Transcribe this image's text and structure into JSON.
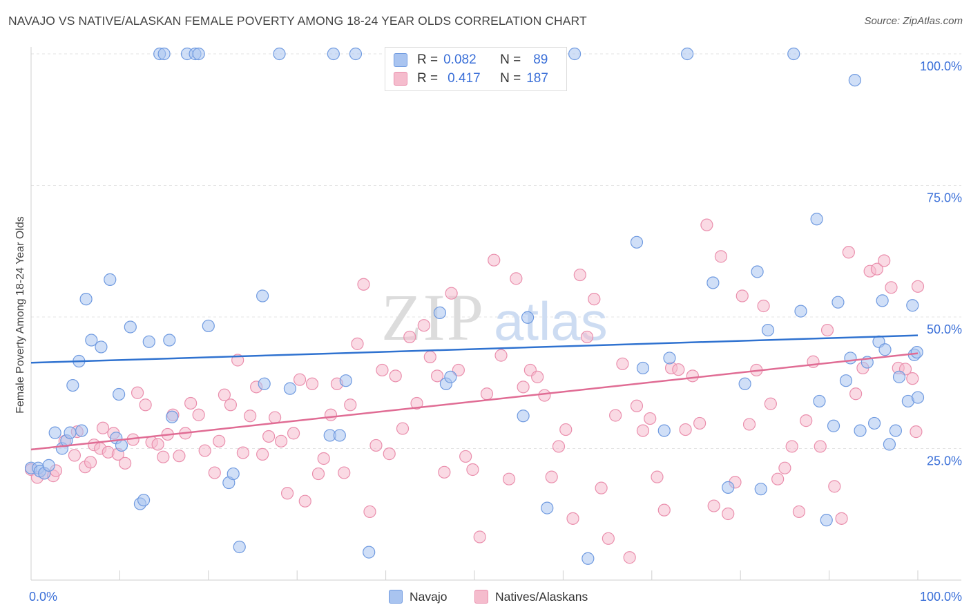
{
  "title": "NAVAJO VS NATIVE/ALASKAN FEMALE POVERTY AMONG 18-24 YEAR OLDS CORRELATION CHART",
  "source": "Source: ZipAtlas.com",
  "watermark": {
    "zip": "ZIP",
    "atlas": "atlas"
  },
  "stats": {
    "navajo": {
      "r_label": "R =",
      "r": "0.082",
      "n_label": "N =",
      "n": "89"
    },
    "natives": {
      "r_label": "R =",
      "r": "0.417",
      "n_label": "N =",
      "n": "187"
    }
  },
  "colors": {
    "navajo_fill": "#a9c4f0",
    "navajo_stroke": "#6f9ae0",
    "navajo_line": "#2f72d0",
    "natives_fill": "#f5bccd",
    "natives_stroke": "#ea8fad",
    "natives_line": "#e06c94",
    "axis_label": "#3a6fd8",
    "grid": "#e3e3e3"
  },
  "legend": {
    "navajo": "Navajo",
    "natives": "Natives/Alaskans"
  },
  "chart_data": {
    "type": "scatter",
    "title": "NAVAJO VS NATIVE/ALASKAN FEMALE POVERTY AMONG 18-24 YEAR OLDS CORRELATION CHART",
    "xlabel": "",
    "ylabel": "Female Poverty Among 18-24 Year Olds",
    "xlim": [
      0,
      100
    ],
    "ylim": [
      0,
      100
    ],
    "x_tick_labels": [
      "0.0%",
      "100.0%"
    ],
    "y_ticks": [
      {
        "value": 100,
        "label": "100.0%"
      },
      {
        "value": 75,
        "label": "75.0%"
      },
      {
        "value": 50,
        "label": "50.0%"
      },
      {
        "value": 25,
        "label": "25.0%"
      }
    ],
    "grid": true,
    "legend_position": "bottom-center",
    "series": [
      {
        "name": "Navajo",
        "trend": [
          [
            0,
            41.3
          ],
          [
            100,
            46.5
          ]
        ],
        "points": [
          [
            0,
            21.3
          ],
          [
            0.8,
            21.3
          ],
          [
            1,
            20.7
          ],
          [
            1.5,
            20.3
          ],
          [
            2,
            21.8
          ],
          [
            2.7,
            28
          ],
          [
            3.5,
            25
          ],
          [
            4,
            26.5
          ],
          [
            4.4,
            28
          ],
          [
            4.7,
            37
          ],
          [
            5.4,
            41.6
          ],
          [
            5.7,
            28.4
          ],
          [
            6.2,
            53.4
          ],
          [
            6.8,
            45.6
          ],
          [
            7.9,
            44.3
          ],
          [
            8.9,
            57.1
          ],
          [
            9.6,
            27
          ],
          [
            9.9,
            35.3
          ],
          [
            10.2,
            25.6
          ],
          [
            11.2,
            48.1
          ],
          [
            12.3,
            14.5
          ],
          [
            12.7,
            15.2
          ],
          [
            13.3,
            45.3
          ],
          [
            14.5,
            100
          ],
          [
            15,
            100
          ],
          [
            15.6,
            45.6
          ],
          [
            15.9,
            31
          ],
          [
            17.6,
            100
          ],
          [
            18.5,
            100
          ],
          [
            18.9,
            100
          ],
          [
            20,
            48.3
          ],
          [
            22.3,
            18.5
          ],
          [
            22.8,
            20.2
          ],
          [
            23.5,
            6.3
          ],
          [
            26.1,
            54
          ],
          [
            26.3,
            37.3
          ],
          [
            28,
            100
          ],
          [
            29.2,
            36.4
          ],
          [
            33.7,
            27.5
          ],
          [
            34.1,
            100
          ],
          [
            34.8,
            27.5
          ],
          [
            35.5,
            37.9
          ],
          [
            36.6,
            100
          ],
          [
            38.1,
            5.3
          ],
          [
            42.5,
            100
          ],
          [
            46.1,
            50.8
          ],
          [
            46.8,
            37.3
          ],
          [
            47.3,
            38.6
          ],
          [
            50.3,
            100
          ],
          [
            55.5,
            31.2
          ],
          [
            56,
            49.9
          ],
          [
            58.2,
            13.7
          ],
          [
            61.3,
            100
          ],
          [
            62.8,
            4.1
          ],
          [
            68.3,
            64.2
          ],
          [
            69,
            40.3
          ],
          [
            71.4,
            28.4
          ],
          [
            72,
            42.2
          ],
          [
            74,
            100
          ],
          [
            76.9,
            56.5
          ],
          [
            78.6,
            17.6
          ],
          [
            80.5,
            37.3
          ],
          [
            81.9,
            58.6
          ],
          [
            82.3,
            17.3
          ],
          [
            83.1,
            47.5
          ],
          [
            86,
            100
          ],
          [
            86.8,
            51.1
          ],
          [
            88.6,
            68.6
          ],
          [
            88.9,
            34
          ],
          [
            89.7,
            11.4
          ],
          [
            90.5,
            29.3
          ],
          [
            91,
            52.8
          ],
          [
            91.9,
            37.9
          ],
          [
            92.4,
            42.2
          ],
          [
            92.9,
            95
          ],
          [
            93.5,
            28.4
          ],
          [
            94.3,
            41.4
          ],
          [
            95.1,
            29.8
          ],
          [
            95.6,
            45.3
          ],
          [
            96,
            53.1
          ],
          [
            96.3,
            43.8
          ],
          [
            96.8,
            25.8
          ],
          [
            97.5,
            28.4
          ],
          [
            97.9,
            38.6
          ],
          [
            98.9,
            34
          ],
          [
            99.4,
            52.2
          ],
          [
            99.6,
            42.8
          ],
          [
            99.9,
            43.3
          ],
          [
            100,
            34.7
          ]
        ]
      },
      {
        "name": "Natives/Alaskans",
        "trend": [
          [
            0,
            24.8
          ],
          [
            100,
            43.1
          ]
        ],
        "points": [
          [
            0,
            21
          ],
          [
            0.7,
            19.5
          ],
          [
            1.5,
            20.3
          ],
          [
            2.5,
            19.8
          ],
          [
            2.8,
            20.8
          ],
          [
            3.8,
            26.4
          ],
          [
            4.9,
            23.7
          ],
          [
            5.2,
            28.2
          ],
          [
            6.1,
            21.5
          ],
          [
            6.7,
            22.4
          ],
          [
            7.1,
            25.7
          ],
          [
            7.8,
            25
          ],
          [
            8.1,
            28.9
          ],
          [
            8.7,
            24.3
          ],
          [
            9.3,
            27.9
          ],
          [
            9.8,
            23.9
          ],
          [
            10.6,
            22.2
          ],
          [
            11.5,
            26.7
          ],
          [
            12,
            35.6
          ],
          [
            12.9,
            33.3
          ],
          [
            13.6,
            26.2
          ],
          [
            14.3,
            25.8
          ],
          [
            14.9,
            23.4
          ],
          [
            15.4,
            27.7
          ],
          [
            16,
            31.4
          ],
          [
            16.7,
            23.6
          ],
          [
            17.4,
            27.9
          ],
          [
            18,
            33.6
          ],
          [
            18.9,
            31.4
          ],
          [
            19.6,
            24.6
          ],
          [
            20.7,
            20.4
          ],
          [
            21.2,
            26.4
          ],
          [
            21.8,
            35.2
          ],
          [
            22.5,
            33.3
          ],
          [
            23.3,
            41.8
          ],
          [
            23.9,
            24.2
          ],
          [
            24.7,
            31.2
          ],
          [
            25.4,
            36.7
          ],
          [
            26.1,
            23.9
          ],
          [
            26.8,
            27.3
          ],
          [
            27.5,
            30.9
          ],
          [
            28.2,
            26.4
          ],
          [
            28.9,
            16.5
          ],
          [
            29.6,
            27.9
          ],
          [
            30.3,
            38.1
          ],
          [
            30.9,
            15
          ],
          [
            31.7,
            37.3
          ],
          [
            32.4,
            20.2
          ],
          [
            33,
            23.1
          ],
          [
            33.8,
            31.4
          ],
          [
            34.5,
            37.3
          ],
          [
            35.3,
            20.4
          ],
          [
            36,
            33.3
          ],
          [
            36.8,
            44.9
          ],
          [
            37.5,
            56.2
          ],
          [
            38.2,
            13
          ],
          [
            38.9,
            25.6
          ],
          [
            39.6,
            39.9
          ],
          [
            40.4,
            24
          ],
          [
            41.1,
            38.8
          ],
          [
            41.9,
            28.8
          ],
          [
            42.7,
            46.2
          ],
          [
            43.5,
            33.6
          ],
          [
            44.3,
            48.4
          ],
          [
            45,
            42.4
          ],
          [
            45.8,
            38.8
          ],
          [
            46.6,
            20.5
          ],
          [
            47.4,
            54.5
          ],
          [
            48.2,
            39.9
          ],
          [
            49,
            23.5
          ],
          [
            49.8,
            21
          ],
          [
            50.6,
            8.2
          ],
          [
            51.4,
            35.4
          ],
          [
            52.2,
            60.8
          ],
          [
            53,
            42.7
          ],
          [
            53.9,
            19.2
          ],
          [
            54.7,
            57.3
          ],
          [
            55.5,
            36.7
          ],
          [
            56.3,
            39.9
          ],
          [
            57.1,
            38.6
          ],
          [
            57.9,
            35.1
          ],
          [
            58.7,
            19.6
          ],
          [
            59.5,
            25.4
          ],
          [
            60.3,
            28.6
          ],
          [
            61.1,
            11.7
          ],
          [
            61.9,
            58
          ],
          [
            62.7,
            46.2
          ],
          [
            63.5,
            53.4
          ],
          [
            64.3,
            17.5
          ],
          [
            65.1,
            7.9
          ],
          [
            65.9,
            31.3
          ],
          [
            66.7,
            41.1
          ],
          [
            67.5,
            4.3
          ],
          [
            68.3,
            33.1
          ],
          [
            69,
            28.4
          ],
          [
            69.8,
            30.7
          ],
          [
            70.6,
            19.6
          ],
          [
            71.4,
            13.3
          ],
          [
            72.2,
            40.3
          ],
          [
            73,
            40
          ],
          [
            73.8,
            28.6
          ],
          [
            74.6,
            38.8
          ],
          [
            75.4,
            29.8
          ],
          [
            76.2,
            67.5
          ],
          [
            77,
            14.1
          ],
          [
            77.8,
            61.5
          ],
          [
            78.6,
            12.6
          ],
          [
            79.4,
            18.6
          ],
          [
            80.2,
            54
          ],
          [
            81,
            29.6
          ],
          [
            81.8,
            39.9
          ],
          [
            82.6,
            52.1
          ],
          [
            83.4,
            33.5
          ],
          [
            84.2,
            19.2
          ],
          [
            85,
            21.3
          ],
          [
            85.8,
            25.4
          ],
          [
            86.6,
            13
          ],
          [
            87.4,
            30.3
          ],
          [
            88.2,
            41.5
          ],
          [
            89,
            25.4
          ],
          [
            89.8,
            47.5
          ],
          [
            90.6,
            17.8
          ],
          [
            91.4,
            11.7
          ],
          [
            92.2,
            62.3
          ],
          [
            93,
            35.4
          ],
          [
            93.8,
            40.3
          ],
          [
            94.6,
            58.7
          ],
          [
            95.4,
            59.1
          ],
          [
            96.2,
            60.7
          ],
          [
            97,
            55.6
          ],
          [
            97.8,
            40.3
          ],
          [
            98.6,
            40.1
          ],
          [
            99.4,
            38.3
          ],
          [
            99.8,
            28.2
          ],
          [
            100,
            55.8
          ]
        ]
      }
    ]
  }
}
